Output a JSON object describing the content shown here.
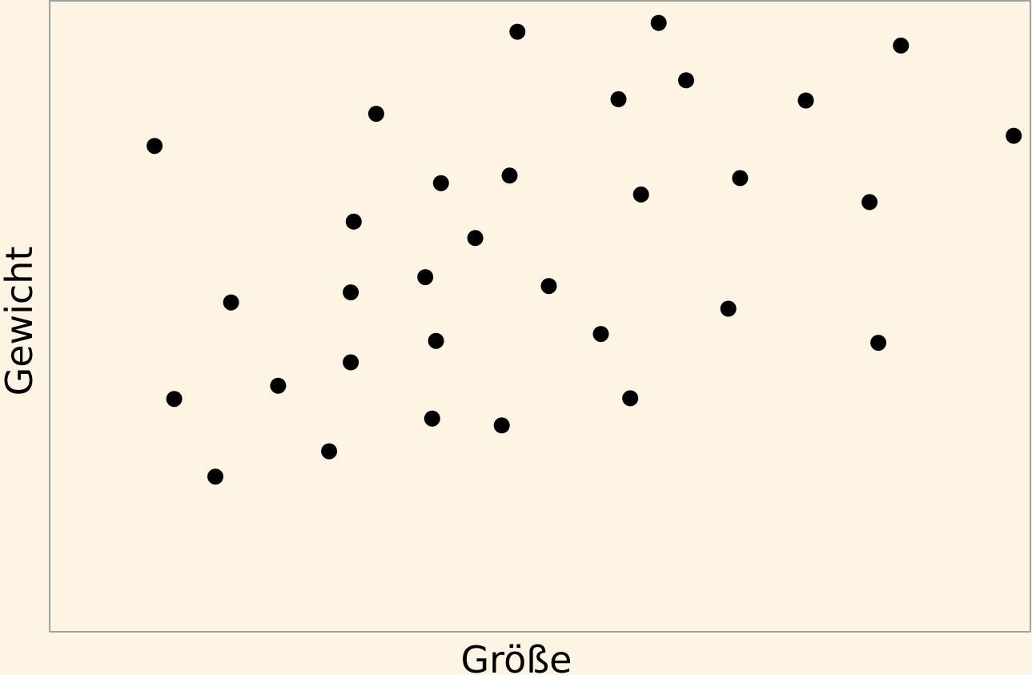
{
  "colors": {
    "background": "#fdf4e3",
    "plot_border": "#9aa4a4",
    "point": "#000000"
  },
  "chart_data": {
    "type": "scatter",
    "xlabel": "Größe",
    "ylabel": "Gewicht",
    "xlim": [
      0,
      100
    ],
    "ylim": [
      0,
      100
    ],
    "grid": false,
    "ticks": false,
    "points": [
      {
        "x": 10.7,
        "y": 77.0
      },
      {
        "x": 12.7,
        "y": 36.9
      },
      {
        "x": 16.9,
        "y": 24.6
      },
      {
        "x": 18.5,
        "y": 52.2
      },
      {
        "x": 23.3,
        "y": 39.0
      },
      {
        "x": 28.5,
        "y": 28.6
      },
      {
        "x": 30.7,
        "y": 42.7
      },
      {
        "x": 30.7,
        "y": 53.8
      },
      {
        "x": 31.0,
        "y": 65.0
      },
      {
        "x": 33.3,
        "y": 82.1
      },
      {
        "x": 38.3,
        "y": 56.2
      },
      {
        "x": 39.0,
        "y": 33.8
      },
      {
        "x": 39.4,
        "y": 46.1
      },
      {
        "x": 39.9,
        "y": 71.1
      },
      {
        "x": 43.4,
        "y": 62.4
      },
      {
        "x": 46.1,
        "y": 32.7
      },
      {
        "x": 46.9,
        "y": 72.3
      },
      {
        "x": 47.7,
        "y": 95.1
      },
      {
        "x": 50.9,
        "y": 54.8
      },
      {
        "x": 56.2,
        "y": 47.2
      },
      {
        "x": 58.0,
        "y": 84.4
      },
      {
        "x": 59.2,
        "y": 37.0
      },
      {
        "x": 60.3,
        "y": 69.3
      },
      {
        "x": 62.1,
        "y": 96.5
      },
      {
        "x": 64.9,
        "y": 87.4
      },
      {
        "x": 69.2,
        "y": 51.2
      },
      {
        "x": 70.4,
        "y": 71.9
      },
      {
        "x": 77.1,
        "y": 84.2
      },
      {
        "x": 83.6,
        "y": 68.1
      },
      {
        "x": 84.5,
        "y": 45.8
      },
      {
        "x": 86.8,
        "y": 92.9
      },
      {
        "x": 98.3,
        "y": 78.6
      }
    ]
  }
}
